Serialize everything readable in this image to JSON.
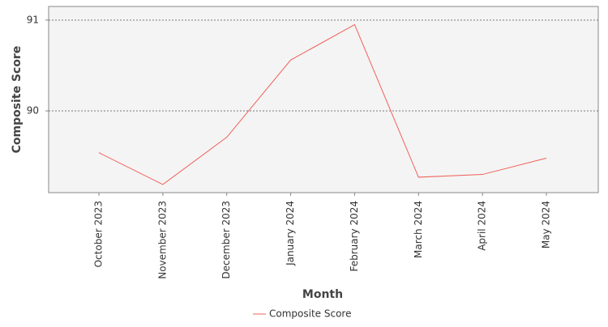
{
  "chart_data": {
    "type": "line",
    "x_label": "Month",
    "y_label": "Composite Score",
    "categories": [
      "October 2023",
      "November 2023",
      "December 2023",
      "January 2024",
      "February 2024",
      "March 2024",
      "April 2024",
      "May 2024"
    ],
    "series": [
      {
        "name": "Composite Score",
        "color": "#f0605a",
        "values": [
          89.54,
          89.19,
          89.71,
          90.56,
          90.95,
          89.27,
          89.3,
          89.48
        ]
      }
    ],
    "ylim": [
      89.1,
      91.15
    ],
    "yticks": [
      90,
      91
    ],
    "grid": true,
    "legend": "bottom"
  }
}
